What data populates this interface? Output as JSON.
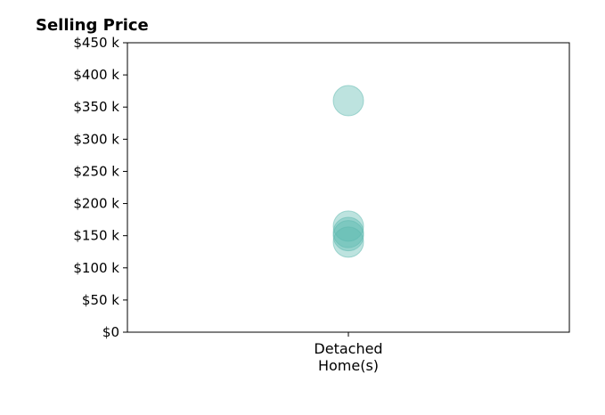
{
  "chart_data": {
    "type": "scatter",
    "title": "Selling Price",
    "xlabel": "",
    "ylabel": "",
    "categories": [
      "Detached\nHome(s)"
    ],
    "ylim": [
      0,
      450000
    ],
    "y_ticks": [
      0,
      50000,
      100000,
      150000,
      200000,
      250000,
      300000,
      350000,
      400000,
      450000
    ],
    "y_tick_labels": [
      "$0",
      "$50 k",
      "$100 k",
      "$150 k",
      "$200 k",
      "$250 k",
      "$300 k",
      "$350 k",
      "$400 k",
      "$450 k"
    ],
    "grid": false,
    "series": [
      {
        "category": "Detached\nHome(s)",
        "values": [
          360000,
          165000,
          155000,
          150000,
          140000
        ],
        "color": "#5bb8ae",
        "opacity": 0.4
      }
    ]
  }
}
